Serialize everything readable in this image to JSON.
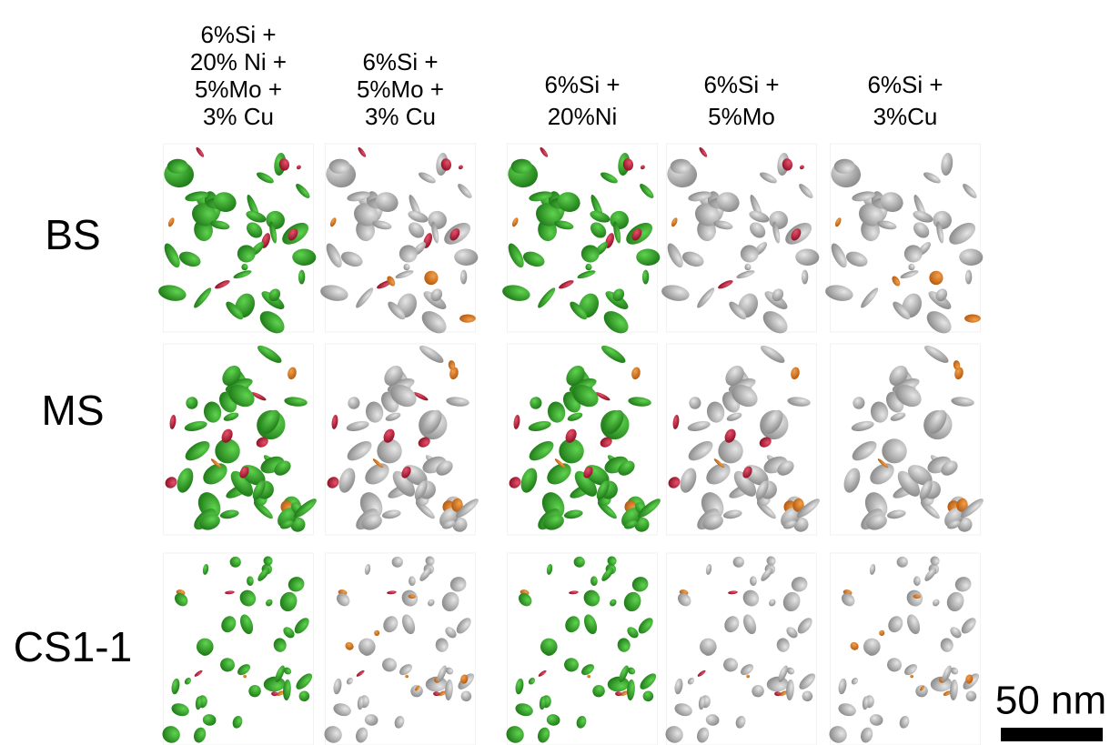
{
  "columns": [
    {
      "lines": [
        "6%Si +",
        "20% Ni +",
        "5%Mo +",
        "3% Cu"
      ]
    },
    {
      "lines": [
        "6%Si +",
        "5%Mo +",
        "3% Cu"
      ]
    },
    {
      "lines": [
        "6%Si +",
        "20%Ni"
      ]
    },
    {
      "lines": [
        "6%Si +",
        "5%Mo"
      ]
    },
    {
      "lines": [
        "6%Si +",
        "3%Cu"
      ]
    }
  ],
  "rows": [
    "BS",
    "MS",
    "CS1-1"
  ],
  "scale_bar": "50 nm"
}
